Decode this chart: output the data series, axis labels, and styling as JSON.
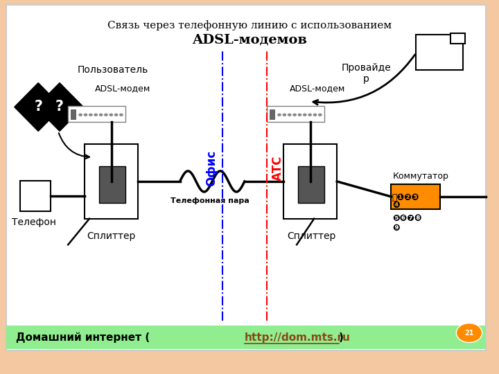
{
  "title_line1": "Связь через телефонную линию с использованием",
  "title_line2": "ADSL-модемов",
  "slide_bg": "#F4C8A0",
  "green_bar_color": "#90EE90",
  "orange_box_color": "#FF8C00",
  "label_polzovatel": "Пользователь",
  "label_adsl_modem_left": "ADSL-модем",
  "label_adsl_modem_right": "ADSL-модем",
  "label_provajder": "Провайде\nр",
  "label_telefon": "Телефон",
  "label_splitter_left": "Сплиттер",
  "label_splitter_right": "Сплиттер",
  "label_kommutator": "Коммутатор",
  "label_telefonnaya_para": "Телефонная пара",
  "label_ofis": "Офис",
  "label_atc": "АТС",
  "blue_line_x": 0.445,
  "red_line_x": 0.535,
  "green_bar_text": "Домашний интернет (",
  "green_bar_link": "http://dom.mts.ru",
  "green_bar_suffix": ")"
}
